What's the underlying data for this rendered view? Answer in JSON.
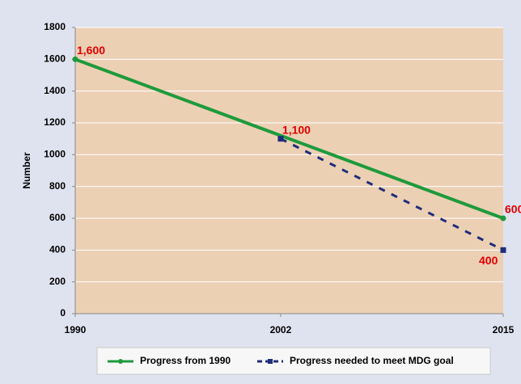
{
  "chart_data": {
    "type": "line",
    "y_label": "Number",
    "xlim": [
      1990,
      2015
    ],
    "xticks": [
      1990,
      2002,
      2015
    ],
    "ylim": [
      0,
      1800
    ],
    "yticks": [
      0,
      200,
      400,
      600,
      800,
      1000,
      1200,
      1400,
      1600,
      1800
    ],
    "grid": true,
    "legend": "bottom",
    "series": [
      {
        "name": "Progress from 1990",
        "color": "#1e9a3c",
        "dash": false,
        "marker": "circle",
        "x": [
          1990,
          2015
        ],
        "values": [
          1600,
          600
        ],
        "value_labels": [
          "1,600",
          "600"
        ]
      },
      {
        "name": "Progress needed to meet MDG goal",
        "color": "#1f2d7a",
        "dash": true,
        "marker": "square",
        "x": [
          2002,
          2015
        ],
        "values": [
          1100,
          400
        ],
        "value_labels": [
          "1,100",
          "400"
        ]
      }
    ]
  }
}
